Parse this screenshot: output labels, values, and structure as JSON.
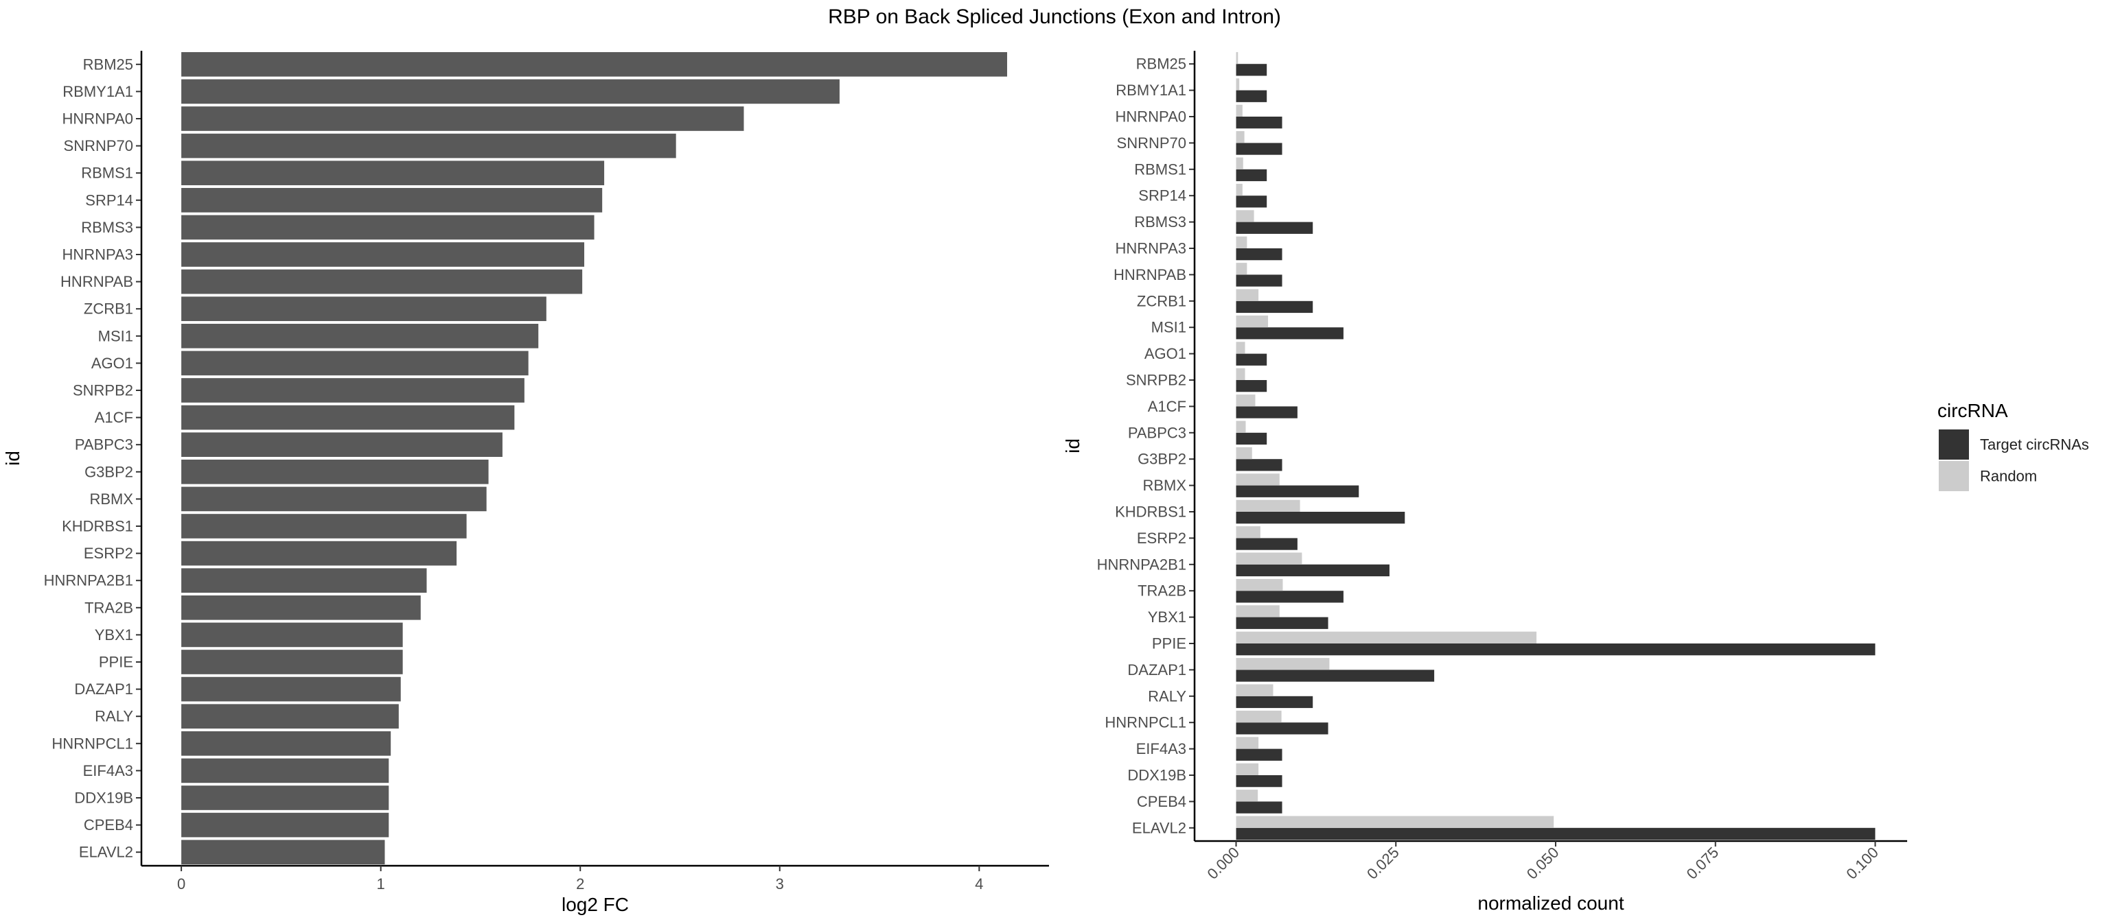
{
  "figure": {
    "title": "RBP on Back Spliced Junctions (Exon and Intron)"
  },
  "chart_data": [
    {
      "type": "bar",
      "orientation": "horizontal",
      "categories": [
        "RBM25",
        "RBMY1A1",
        "HNRNPA0",
        "SNRNP70",
        "RBMS1",
        "SRP14",
        "RBMS3",
        "HNRNPA3",
        "HNRNPAB",
        "ZCRB1",
        "MSI1",
        "AGO1",
        "SNRPB2",
        "A1CF",
        "PABPC3",
        "G3BP2",
        "RBMX",
        "KHDRBS1",
        "ESRP2",
        "HNRNPA2B1",
        "TRA2B",
        "YBX1",
        "PPIE",
        "DAZAP1",
        "RALY",
        "HNRNPCL1",
        "EIF4A3",
        "DDX19B",
        "CPEB4",
        "ELAVL2"
      ],
      "values": [
        4.14,
        3.3,
        2.82,
        2.48,
        2.12,
        2.11,
        2.07,
        2.02,
        2.01,
        1.83,
        1.79,
        1.74,
        1.72,
        1.67,
        1.61,
        1.54,
        1.53,
        1.43,
        1.38,
        1.23,
        1.2,
        1.11,
        1.11,
        1.1,
        1.09,
        1.05,
        1.04,
        1.04,
        1.04,
        1.02
      ],
      "xlabel": "log2 FC",
      "ylabel": "id",
      "xlim": [
        -0.2,
        4.35
      ],
      "xticks": [
        "0",
        "1",
        "2",
        "3",
        "4"
      ],
      "xtick_values": [
        0,
        1,
        2,
        3,
        4
      ],
      "bar_color": "#595959",
      "grid": false
    },
    {
      "type": "bar",
      "orientation": "horizontal",
      "grouped": true,
      "categories": [
        "RBM25",
        "RBMY1A1",
        "HNRNPA0",
        "SNRNP70",
        "RBMS1",
        "SRP14",
        "RBMS3",
        "HNRNPA3",
        "HNRNPAB",
        "ZCRB1",
        "MSI1",
        "AGO1",
        "SNRPB2",
        "A1CF",
        "PABPC3",
        "G3BP2",
        "RBMX",
        "KHDRBS1",
        "ESRP2",
        "HNRNPA2B1",
        "TRA2B",
        "YBX1",
        "PPIE",
        "DAZAP1",
        "RALY",
        "HNRNPCL1",
        "EIF4A3",
        "DDX19B",
        "CPEB4",
        "ELAVL2"
      ],
      "series": [
        {
          "name": "Target circRNAs",
          "color": "#333333",
          "values": [
            0.0048,
            0.0048,
            0.0072,
            0.0072,
            0.0048,
            0.0048,
            0.012,
            0.0072,
            0.0072,
            0.012,
            0.0168,
            0.0048,
            0.0048,
            0.0096,
            0.0048,
            0.0072,
            0.0192,
            0.0264,
            0.0096,
            0.024,
            0.0168,
            0.0144,
            0.1,
            0.031,
            0.012,
            0.0144,
            0.0072,
            0.0072,
            0.0072,
            0.1
          ]
        },
        {
          "name": "Random",
          "color": "#cccccc",
          "values": [
            0.0003,
            0.0005,
            0.001,
            0.0013,
            0.0011,
            0.001,
            0.0028,
            0.0017,
            0.0017,
            0.0035,
            0.005,
            0.0014,
            0.0014,
            0.003,
            0.0015,
            0.0025,
            0.0068,
            0.01,
            0.0038,
            0.0103,
            0.0073,
            0.0068,
            0.047,
            0.0146,
            0.0058,
            0.0071,
            0.0035,
            0.0035,
            0.0034,
            0.0497
          ]
        }
      ],
      "xlabel": "normalized count",
      "ylabel": "id",
      "xlim": [
        -0.0065,
        0.105
      ],
      "xticks": [
        "0.000",
        "0.025",
        "0.050",
        "0.075",
        "0.100"
      ],
      "xtick_values": [
        0,
        0.025,
        0.05,
        0.075,
        0.1
      ],
      "legend": {
        "title": "circRNA",
        "position": "right",
        "entries": [
          "Target circRNAs",
          "Random"
        ]
      },
      "grid": false
    }
  ]
}
